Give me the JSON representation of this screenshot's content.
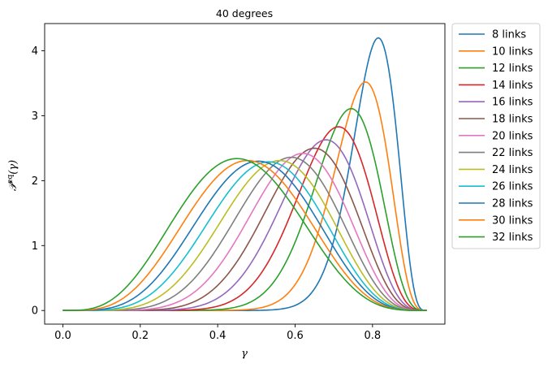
{
  "chart_data": {
    "type": "line",
    "title": "40 degrees",
    "xlabel": "γ",
    "ylabel": "𝒫eq(γ)",
    "ylabel_main": "𝒫",
    "ylabel_sup": "eq",
    "ylabel_arg": "(γ)",
    "xlim": [
      -0.047,
      0.987
    ],
    "ylim": [
      -0.21,
      4.42
    ],
    "x_ticks": [
      0.0,
      0.2,
      0.4,
      0.6,
      0.8
    ],
    "x_tick_labels": [
      "0.0",
      "0.2",
      "0.4",
      "0.6",
      "0.8"
    ],
    "y_ticks": [
      0,
      1,
      2,
      3,
      4
    ],
    "y_tick_labels": [
      "0",
      "1",
      "2",
      "3",
      "4"
    ],
    "grid": false,
    "legend_position": "outside-right-top",
    "x_domain": [
      0.0,
      0.94
    ],
    "series": [
      {
        "name": "8 links",
        "color": "#1f77b4",
        "peak_x": 0.815,
        "peak_y": 4.2
      },
      {
        "name": "10 links",
        "color": "#ff7f0e",
        "peak_x": 0.782,
        "peak_y": 3.52
      },
      {
        "name": "12 links",
        "color": "#2ca02c",
        "peak_x": 0.745,
        "peak_y": 3.11
      },
      {
        "name": "14 links",
        "color": "#d62728",
        "peak_x": 0.712,
        "peak_y": 2.83
      },
      {
        "name": "16 links",
        "color": "#9467bd",
        "peak_x": 0.68,
        "peak_y": 2.63
      },
      {
        "name": "18 links",
        "color": "#8c564b",
        "peak_x": 0.65,
        "peak_y": 2.5
      },
      {
        "name": "20 links",
        "color": "#e377c2",
        "peak_x": 0.62,
        "peak_y": 2.42
      },
      {
        "name": "22 links",
        "color": "#7f7f7f",
        "peak_x": 0.59,
        "peak_y": 2.36
      },
      {
        "name": "24 links",
        "color": "#bcbd22",
        "peak_x": 0.56,
        "peak_y": 2.31
      },
      {
        "name": "26 links",
        "color": "#17becf",
        "peak_x": 0.532,
        "peak_y": 2.29
      },
      {
        "name": "28 links",
        "color": "#1f77b4",
        "peak_x": 0.505,
        "peak_y": 2.3
      },
      {
        "name": "30 links",
        "color": "#ff7f0e",
        "peak_x": 0.477,
        "peak_y": 2.31
      },
      {
        "name": "32 links",
        "color": "#2ca02c",
        "peak_x": 0.45,
        "peak_y": 2.34
      }
    ]
  }
}
